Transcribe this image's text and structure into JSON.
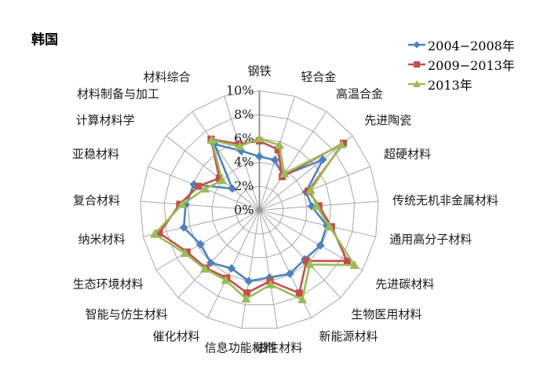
{
  "title": {
    "text": "韩国"
  },
  "legend": {
    "position": "top-right",
    "items": [
      {
        "label": "2004−2008年",
        "color": "#4F81BD",
        "marker": "diamond"
      },
      {
        "label": "2009−2013年",
        "color": "#C0504D",
        "marker": "square"
      },
      {
        "label": "2013年",
        "color": "#9BBB59",
        "marker": "triangle"
      }
    ]
  },
  "chart_data": {
    "type": "radar",
    "title": "韩国",
    "unit": "%",
    "grid": true,
    "legend_position": "top-right",
    "radial_axis": {
      "min": 0,
      "max": 10,
      "step": 2,
      "tick_labels": [
        "0%",
        "2%",
        "4%",
        "6%",
        "8%",
        "10%"
      ]
    },
    "categories": [
      "钢铁",
      "轻合金",
      "高温合金",
      "先进陶瓷",
      "超硬材料",
      "传统无机非金属材料",
      "通用高分子材料",
      "先进碳材料",
      "生物医用材料",
      "新能源材料",
      "磁性材料",
      "信息功能材料",
      "催化材料",
      "智能与仿生材料",
      "生态环境材料",
      "纳米材料",
      "复合材料",
      "亚稳材料",
      "计算材料学",
      "材料制备与加工",
      "材料综合"
    ],
    "series": [
      {
        "name": "2004−2008年",
        "color": "#4F81BD",
        "marker": "diamond",
        "values": [
          4.5,
          4.4,
          3.5,
          6.8,
          4.2,
          4.4,
          5.8,
          5.9,
          5.6,
          5.9,
          5.7,
          6.0,
          5.4,
          6.0,
          5.7,
          6.5,
          6.2,
          5.9,
          2.9,
          6.7,
          5.2
        ]
      },
      {
        "name": "2009−2013年",
        "color": "#C0504D",
        "marker": "square",
        "values": [
          5.8,
          5.3,
          3.4,
          9.0,
          4.4,
          5.0,
          6.2,
          8.5,
          5.8,
          7.7,
          6.0,
          7.0,
          6.3,
          6.6,
          7.0,
          8.6,
          6.7,
          5.5,
          4.3,
          7.2,
          5.8
        ]
      },
      {
        "name": "2013年",
        "color": "#9BBB59",
        "marker": "triangle",
        "values": [
          6.0,
          5.7,
          3.7,
          8.8,
          4.6,
          4.8,
          6.0,
          9.2,
          6.2,
          8.3,
          6.3,
          7.5,
          6.5,
          6.7,
          7.2,
          9.0,
          6.5,
          4.9,
          4.0,
          7.1,
          5.6
        ]
      }
    ]
  }
}
